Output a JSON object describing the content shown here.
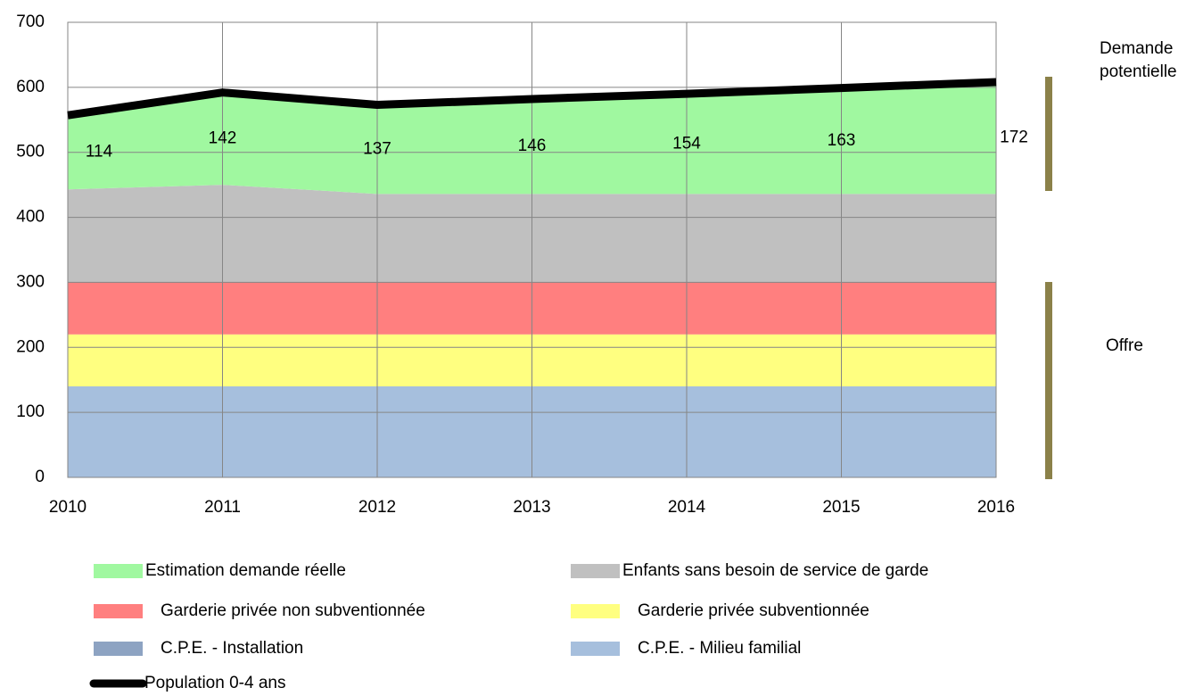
{
  "chart_data": {
    "type": "stacked_area",
    "x": [
      2010,
      2011,
      2012,
      2013,
      2014,
      2015,
      2016
    ],
    "xlim": [
      2010,
      2016
    ],
    "xticks": [
      2010,
      2011,
      2012,
      2013,
      2014,
      2015,
      2016
    ],
    "ylim": [
      0,
      700
    ],
    "yticks": [
      0,
      100,
      200,
      300,
      400,
      500,
      600,
      700
    ],
    "grid": true,
    "series": [
      {
        "name": "Estimation demande réelle",
        "color": "#a0f8a0",
        "values": [
          114,
          142,
          137,
          146,
          154,
          163,
          172
        ]
      },
      {
        "name": "Enfants sans besoin de service de garde",
        "color": "#c0c0c0",
        "values": [
          143,
          150,
          136,
          136,
          136,
          136,
          136
        ]
      },
      {
        "name": "Garderie privée non subventionnée",
        "color": "#ff7f7f",
        "values": [
          80,
          80,
          80,
          80,
          80,
          80,
          80
        ]
      },
      {
        "name": "Garderie privée subventionnée",
        "color": "#ffff80",
        "values": [
          80,
          80,
          80,
          80,
          80,
          80,
          80
        ]
      },
      {
        "name": "C.P.E. - Installation",
        "color": "#8da3c2",
        "values": [
          0,
          0,
          0,
          0,
          0,
          0,
          0
        ]
      },
      {
        "name": "C.P.E. - Milieu familial",
        "color": "#a6bfdd",
        "values": [
          140,
          140,
          140,
          140,
          140,
          140,
          140
        ]
      }
    ],
    "line": {
      "name": "Population 0-4 ans",
      "color": "#000000",
      "values": [
        557,
        592,
        573,
        582,
        590,
        599,
        608
      ]
    },
    "annotations": [
      "Demande potentielle",
      "Offre"
    ]
  }
}
